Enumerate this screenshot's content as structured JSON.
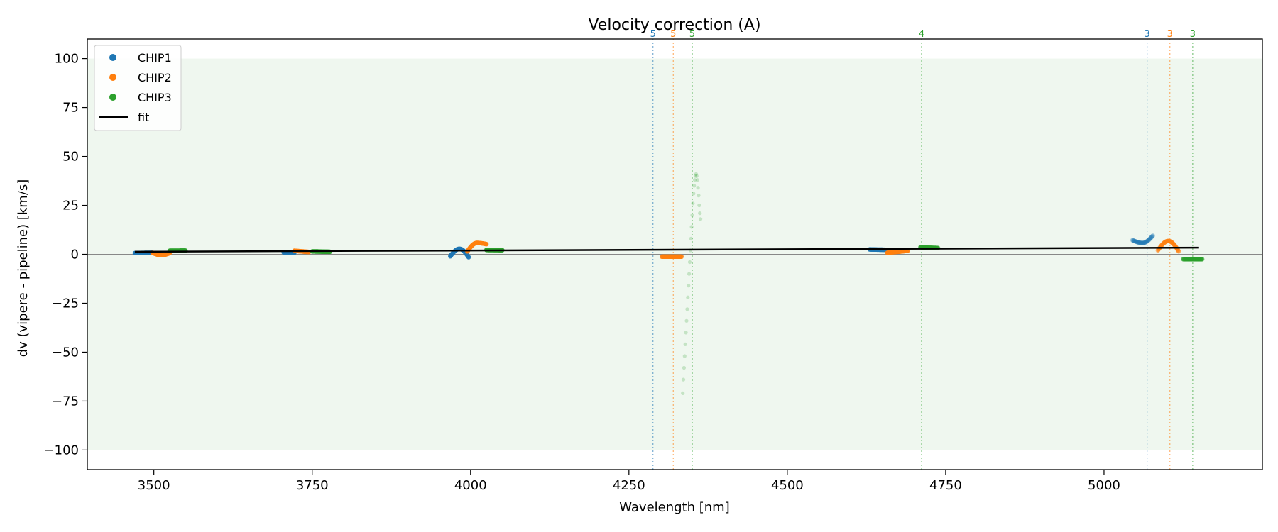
{
  "chart_data": {
    "type": "scatter",
    "title": "Velocity correction (A)",
    "xlabel": "Wavelength [nm]",
    "ylabel": "dv (vipere - pipeline) [km/s]",
    "xlim": [
      3395,
      5250
    ],
    "ylim": [
      -110,
      110
    ],
    "xticks": [
      3500,
      3750,
      4000,
      4250,
      4500,
      4750,
      5000
    ],
    "yticks": [
      -100,
      -75,
      -50,
      -25,
      0,
      25,
      50,
      75,
      100
    ],
    "grid": false,
    "legend_position": "top-left",
    "shaded_band": {
      "y0": -100,
      "y1": 100,
      "color": "#e8f4e8"
    },
    "zero_line": {
      "y": 0,
      "color": "#888888"
    },
    "colors": {
      "CHIP1": "#1f77b4",
      "CHIP2": "#ff7f0e",
      "CHIP3": "#2ca02c",
      "fit": "#000000"
    },
    "legend": [
      {
        "label": "CHIP1",
        "kind": "marker",
        "color": "#1f77b4"
      },
      {
        "label": "CHIP2",
        "kind": "marker",
        "color": "#ff7f0e"
      },
      {
        "label": "CHIP3",
        "kind": "marker",
        "color": "#2ca02c"
      },
      {
        "label": "fit",
        "kind": "line",
        "color": "#000000"
      }
    ],
    "fit": {
      "name": "fit",
      "x": [
        3470,
        5150
      ],
      "y": [
        1.3,
        3.4
      ]
    },
    "series": [
      {
        "name": "CHIP1",
        "color": "#1f77b4",
        "segments": [
          {
            "x0": 3470,
            "x1": 3498,
            "shape": "flat",
            "y0": 0.6,
            "y1": 0.8,
            "alpha": 0.9
          },
          {
            "x0": 3705,
            "x1": 3722,
            "shape": "flat",
            "y0": 0.9,
            "y1": 0.8,
            "alpha": 0.9
          },
          {
            "x0": 3968,
            "x1": 3997,
            "shape": "arc",
            "y0": -1.0,
            "peak": 2.8,
            "y1": -1.5,
            "alpha": 0.9
          },
          {
            "x0": 4630,
            "x1": 4655,
            "shape": "flat",
            "y0": 2.5,
            "y1": 2.3,
            "alpha": 0.9
          },
          {
            "x0": 5045,
            "x1": 5077,
            "shape": "trough",
            "y0": 7.2,
            "trough": 5.8,
            "y1": 9.5,
            "alpha": 0.35
          }
        ]
      },
      {
        "name": "CHIP2",
        "color": "#ff7f0e",
        "segments": [
          {
            "x0": 3498,
            "x1": 3525,
            "shape": "trough",
            "y0": 0.8,
            "trough": -0.4,
            "y1": 0.6,
            "alpha": 0.9
          },
          {
            "x0": 3722,
            "x1": 3745,
            "shape": "flat",
            "y0": 1.8,
            "y1": 1.2,
            "alpha": 0.9
          },
          {
            "x0": 3995,
            "x1": 4025,
            "shape": "arc",
            "y0": 1.5,
            "peak": 5.8,
            "y1": 5.2,
            "alpha": 0.9
          },
          {
            "x0": 4302,
            "x1": 4333,
            "shape": "flat",
            "y0": -1.2,
            "y1": -1.2,
            "alpha": 0.75
          },
          {
            "x0": 4658,
            "x1": 4690,
            "shape": "flat",
            "y0": 0.8,
            "y1": 1.8,
            "alpha": 0.9
          },
          {
            "x0": 5085,
            "x1": 5118,
            "shape": "arc",
            "y0": 2.0,
            "peak": 6.8,
            "y1": 1.5,
            "alpha": 0.55
          }
        ]
      },
      {
        "name": "CHIP3",
        "color": "#2ca02c",
        "segments": [
          {
            "x0": 3525,
            "x1": 3550,
            "shape": "flat",
            "y0": 1.8,
            "y1": 1.9,
            "alpha": 0.9
          },
          {
            "x0": 3750,
            "x1": 3778,
            "shape": "flat",
            "y0": 1.5,
            "y1": 1.3,
            "alpha": 0.9
          },
          {
            "x0": 4025,
            "x1": 4050,
            "shape": "flat",
            "y0": 2.2,
            "y1": 2.1,
            "alpha": 0.9
          },
          {
            "x0": 4710,
            "x1": 4738,
            "shape": "flat",
            "y0": 3.6,
            "y1": 3.2,
            "alpha": 0.6
          },
          {
            "x0": 5125,
            "x1": 5155,
            "shape": "flat",
            "y0": -2.5,
            "y1": -2.5,
            "alpha": 0.6
          }
        ]
      },
      {
        "name": "CHIP3",
        "color": "#2ca02c",
        "points_alpha": 0.22,
        "points": [
          [
            4335,
            -71
          ],
          [
            4336,
            -64
          ],
          [
            4337,
            -58
          ],
          [
            4338,
            -52
          ],
          [
            4339,
            -46
          ],
          [
            4340,
            -40
          ],
          [
            4341,
            -34
          ],
          [
            4342,
            -28
          ],
          [
            4343,
            -22
          ],
          [
            4344,
            -16
          ],
          [
            4345,
            -10
          ],
          [
            4346,
            -4
          ],
          [
            4347,
            2
          ],
          [
            4348,
            8
          ],
          [
            4349,
            14
          ],
          [
            4350,
            20
          ],
          [
            4351,
            26
          ],
          [
            4352,
            31
          ],
          [
            4353,
            35
          ],
          [
            4354,
            38
          ],
          [
            4355,
            40
          ],
          [
            4356,
            41
          ],
          [
            4357,
            40
          ],
          [
            4358,
            38
          ],
          [
            4359,
            34
          ],
          [
            4360,
            30
          ],
          [
            4361,
            25
          ],
          [
            4362,
            21
          ],
          [
            4363,
            18
          ]
        ]
      }
    ],
    "annotations": [
      {
        "x": 4288,
        "label": "5",
        "color": "#1f77b4"
      },
      {
        "x": 4320,
        "label": "5",
        "color": "#ff7f0e"
      },
      {
        "x": 4350,
        "label": "5",
        "color": "#2ca02c"
      },
      {
        "x": 4712,
        "label": "4",
        "color": "#2ca02c"
      },
      {
        "x": 5068,
        "label": "3",
        "color": "#1f77b4"
      },
      {
        "x": 5104,
        "label": "3",
        "color": "#ff7f0e"
      },
      {
        "x": 5140,
        "label": "3",
        "color": "#2ca02c"
      }
    ]
  }
}
